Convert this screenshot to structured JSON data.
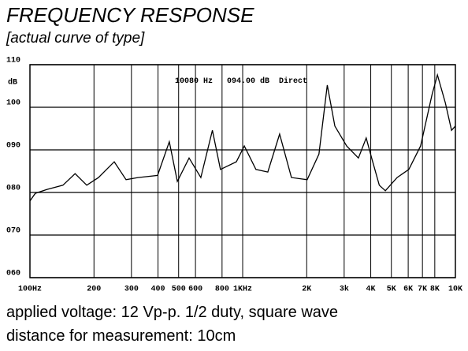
{
  "chart_data": {
    "type": "line",
    "title": "FREQUENCY RESPONSE",
    "subtitle": "[actual curve of type]",
    "y_label": "dB",
    "annotation": "10080 Hz   094.00 dB  Direct",
    "footer": [
      "applied voltage: 12 Vp-p. 1/2 duty, square wave",
      "distance for measurement: 10cm"
    ],
    "xscale": "log",
    "grid": true,
    "xlim": [
      100,
      10000
    ],
    "ylim": [
      60,
      110
    ],
    "xticks": [
      {
        "value": 100,
        "label": "100Hz"
      },
      200,
      300,
      400,
      500,
      600,
      800,
      {
        "value": 1000,
        "label": "1KHz"
      },
      {
        "value": 2000,
        "label": "2K"
      },
      {
        "value": 3000,
        "label": "3k"
      },
      {
        "value": 4000,
        "label": "4K"
      },
      {
        "value": 5000,
        "label": "5K"
      },
      {
        "value": 6000,
        "label": "6K"
      },
      {
        "value": 7000,
        "label": "7K"
      },
      {
        "value": 8000,
        "label": "8K"
      },
      {
        "value": 10000,
        "label": "10K"
      }
    ],
    "yticks": [
      {
        "value": 60,
        "label": "060"
      },
      {
        "value": 70,
        "label": "070"
      },
      {
        "value": 80,
        "label": "080"
      },
      {
        "value": 90,
        "label": "090"
      },
      100,
      110
    ],
    "series": [
      {
        "color": "#000000",
        "x": [
          100,
          106,
          120,
          143,
          163,
          185,
          210,
          249,
          283,
          322,
          398,
          452,
          493,
          560,
          636,
          721,
          786,
          934,
          1018,
          1154,
          1313,
          1492,
          1695,
          2010,
          2284,
          2500,
          2712,
          3083,
          3499,
          3810,
          4040,
          4387,
          4686,
          5320,
          6040,
          6860,
          7770,
          8230,
          8970,
          9590,
          10000
        ],
        "values": [
          78,
          79.8,
          80.7,
          81.7,
          84.4,
          81.7,
          83.5,
          87.2,
          83,
          83.5,
          84,
          91.9,
          82.6,
          88.1,
          83.5,
          94.6,
          85.4,
          87.2,
          90.9,
          85.4,
          84.8,
          93.7,
          83.5,
          83,
          89,
          105.2,
          95.6,
          90.9,
          88.1,
          92.8,
          88.1,
          81.7,
          80.4,
          83.5,
          85.4,
          90.9,
          103,
          107.6,
          101,
          94.6,
          95.6
        ]
      }
    ]
  }
}
